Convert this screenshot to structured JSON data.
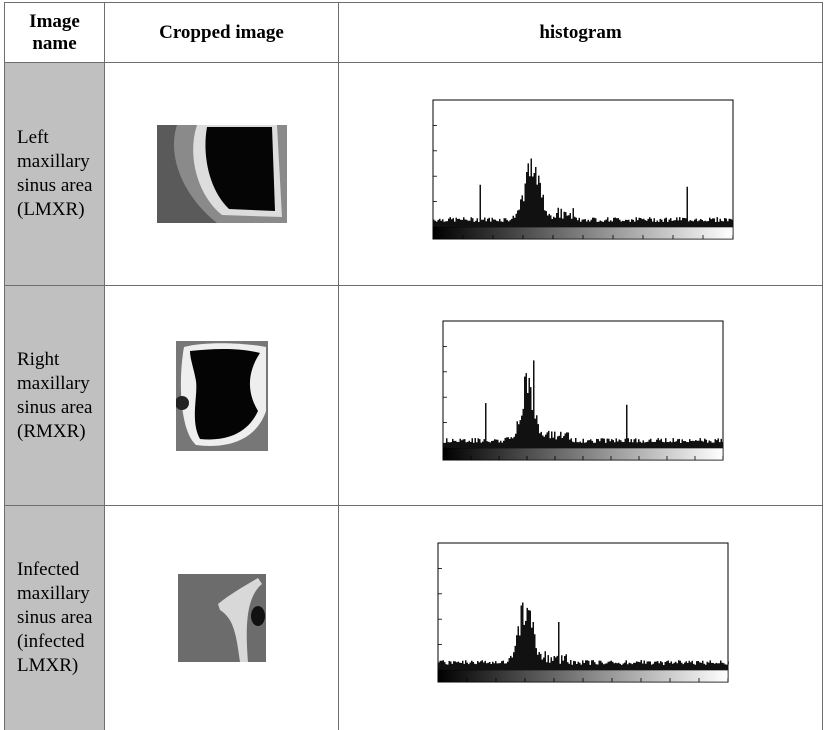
{
  "table": {
    "header": [
      "Image name",
      "Cropped image",
      "histogram"
    ],
    "rows": [
      [
        "Left maxillary sinus area (LMXR)"
      ],
      [
        "Right maxillary sinus area (RMXR)"
      ],
      [
        "Infected maxillary sinus area (infected LMXR)"
      ]
    ]
  }
}
